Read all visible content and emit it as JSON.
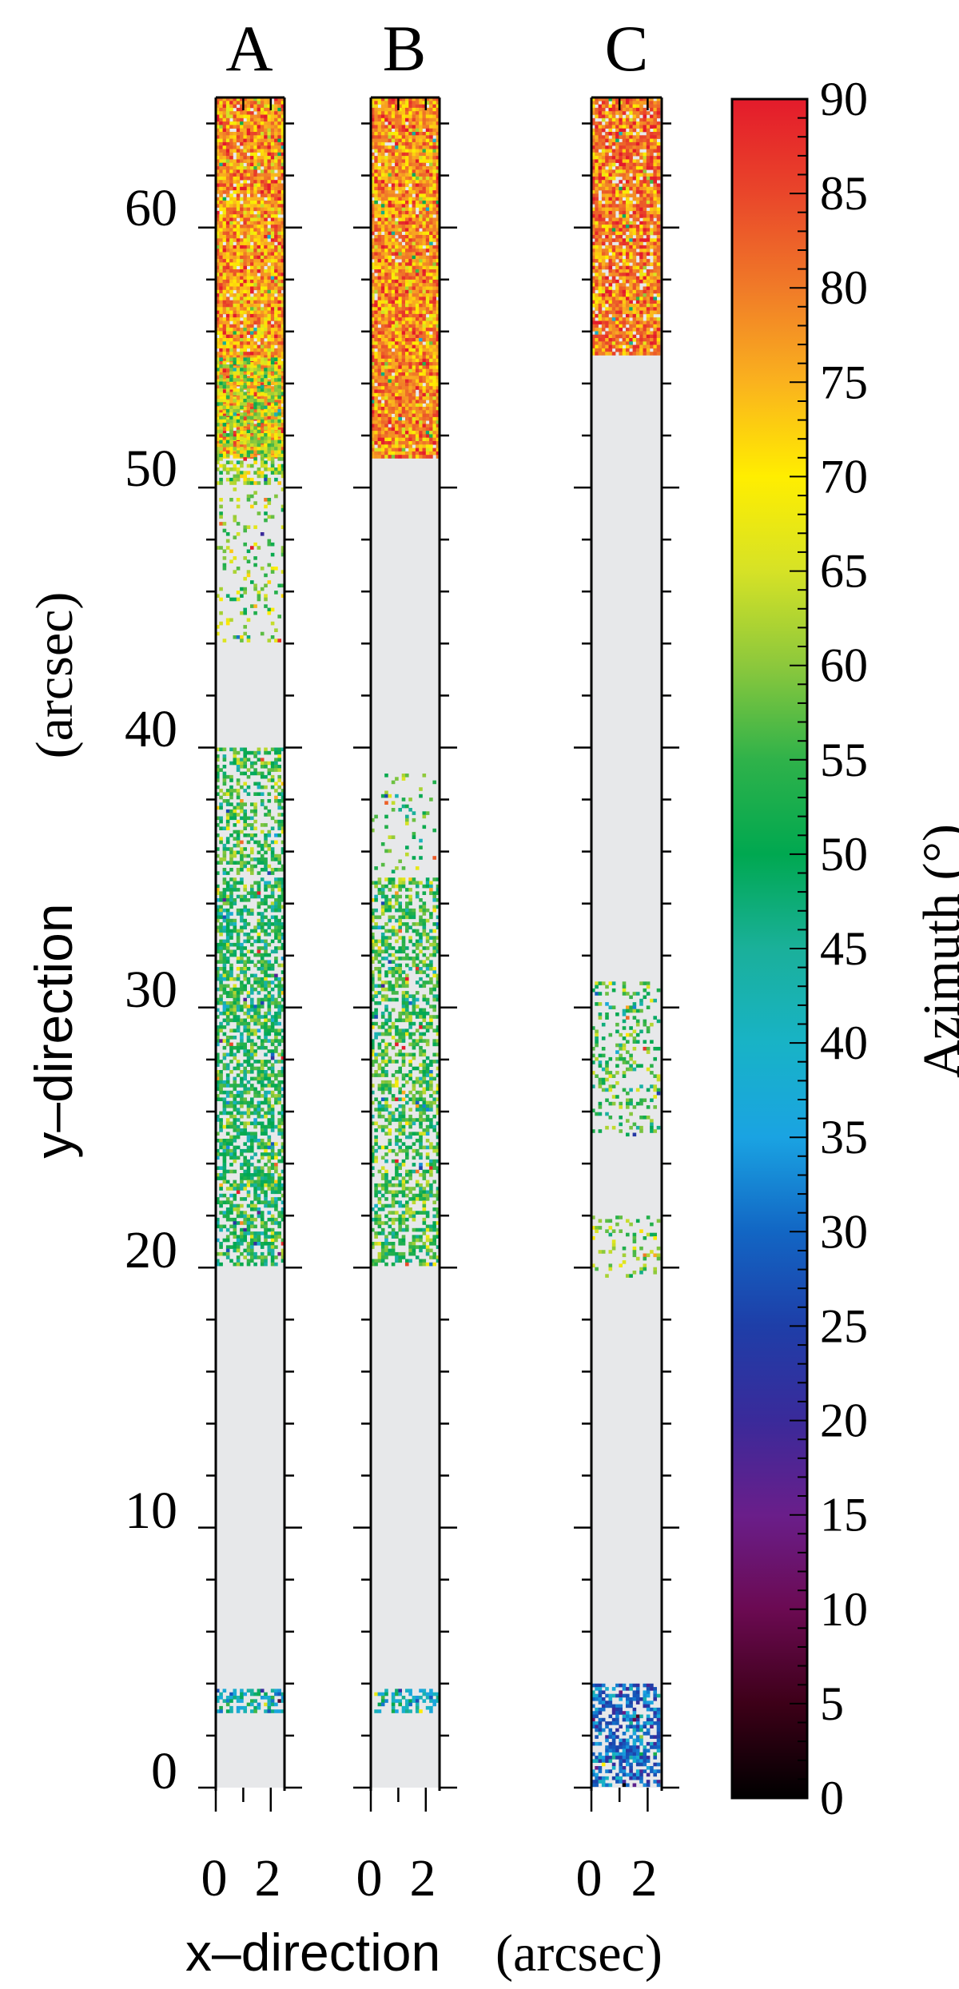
{
  "chart_data": {
    "type": "heatmap",
    "x_label_main": "x–direction",
    "x_label_unit": "(arcsec)",
    "y_label_main": "y–direction",
    "y_label_unit": "(arcsec)",
    "y_ticks": [
      0,
      10,
      20,
      30,
      40,
      50,
      60
    ],
    "y_ticks_text": [
      "0",
      "10",
      "20",
      "30",
      "40",
      "50",
      "60"
    ],
    "x_ticks": [
      0,
      2
    ],
    "x_ticks_text": [
      "0",
      "2"
    ],
    "xlim": [
      0,
      2.5
    ],
    "ylim": [
      0,
      65
    ],
    "grid": false,
    "colorbar": {
      "label": "Azimuth (°)",
      "range": [
        0,
        90
      ],
      "ticks": [
        0,
        5,
        10,
        15,
        20,
        25,
        30,
        35,
        40,
        45,
        50,
        55,
        60,
        65,
        70,
        75,
        80,
        85,
        90
      ],
      "ticks_text": [
        "0",
        "5",
        "10",
        "15",
        "20",
        "25",
        "30",
        "35",
        "40",
        "45",
        "50",
        "55",
        "60",
        "65",
        "70",
        "75",
        "80",
        "85",
        "90"
      ],
      "colormap": [
        {
          "v": 0,
          "c": "#000000"
        },
        {
          "v": 5,
          "c": "#3d0018"
        },
        {
          "v": 10,
          "c": "#6b0a52"
        },
        {
          "v": 15,
          "c": "#6a1e8a"
        },
        {
          "v": 20,
          "c": "#3a2a9a"
        },
        {
          "v": 25,
          "c": "#1e3ea8"
        },
        {
          "v": 30,
          "c": "#1266c4"
        },
        {
          "v": 35,
          "c": "#1aa3e2"
        },
        {
          "v": 40,
          "c": "#18b3c6"
        },
        {
          "v": 45,
          "c": "#1ab09a"
        },
        {
          "v": 50,
          "c": "#00a850"
        },
        {
          "v": 55,
          "c": "#2fb24a"
        },
        {
          "v": 60,
          "c": "#8cc83c"
        },
        {
          "v": 65,
          "c": "#d6e226"
        },
        {
          "v": 70,
          "c": "#ffee00"
        },
        {
          "v": 75,
          "c": "#fab21e"
        },
        {
          "v": 80,
          "c": "#f07a28"
        },
        {
          "v": 85,
          "c": "#e9462a"
        },
        {
          "v": 90,
          "c": "#e41b2b"
        }
      ]
    },
    "background_color": "#e7e8ea",
    "panels": [
      {
        "title": "A",
        "regions": [
          {
            "y": [
              51,
              65
            ],
            "azimuth_mean": 77,
            "density": 0.95
          },
          {
            "y": [
              50,
              55
            ],
            "azimuth_mean": 62,
            "density": 0.6
          },
          {
            "y": [
              44,
              50
            ],
            "azimuth_mean": 60,
            "density": 0.15
          },
          {
            "y": [
              35,
              40
            ],
            "azimuth_mean": 55,
            "density": 0.45
          },
          {
            "y": [
              20,
              35
            ],
            "azimuth_mean": 52,
            "density": 0.6
          },
          {
            "y": [
              2.8,
              3.8
            ],
            "azimuth_mean": 40,
            "density": 0.5
          }
        ]
      },
      {
        "title": "B",
        "regions": [
          {
            "y": [
              51,
              65
            ],
            "azimuth_mean": 78,
            "density": 0.97
          },
          {
            "y": [
              35,
              39
            ],
            "azimuth_mean": 55,
            "density": 0.1
          },
          {
            "y": [
              20,
              35
            ],
            "azimuth_mean": 55,
            "density": 0.5
          },
          {
            "y": [
              2.8,
              3.8
            ],
            "azimuth_mean": 40,
            "density": 0.45
          }
        ]
      },
      {
        "title": "C",
        "regions": [
          {
            "y": [
              55,
              65
            ],
            "azimuth_mean": 80,
            "density": 0.9
          },
          {
            "y": [
              25,
              31
            ],
            "azimuth_mean": 55,
            "density": 0.25
          },
          {
            "y": [
              19.5,
              22
            ],
            "azimuth_mean": 60,
            "density": 0.2
          },
          {
            "y": [
              0,
              4
            ],
            "azimuth_mean": 30,
            "density": 0.6
          }
        ]
      }
    ]
  }
}
